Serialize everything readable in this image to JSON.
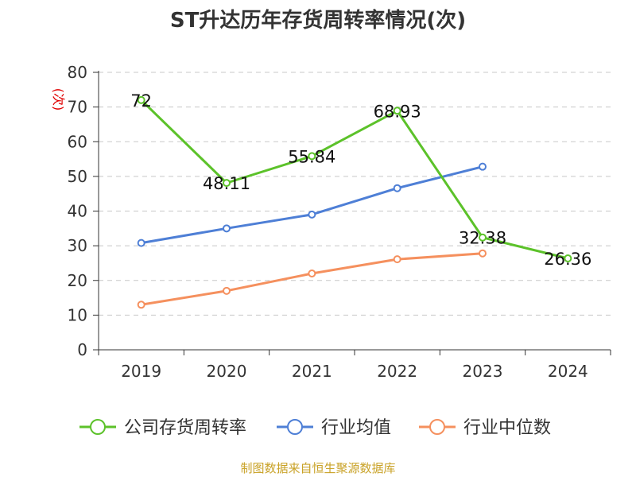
{
  "chart_data": {
    "type": "line",
    "title": "ST升达历年存货周转率情况(次)",
    "ylabel": "(次)",
    "categories": [
      "2019",
      "2020",
      "2021",
      "2022",
      "2023",
      "2024"
    ],
    "y_ticks": [
      0,
      10,
      20,
      30,
      40,
      50,
      60,
      70,
      80
    ],
    "ylim": [
      0,
      80
    ],
    "grid": true,
    "legend_position": "bottom",
    "series": [
      {
        "name": "公司存货周转率",
        "color": "#5cc22a",
        "values": [
          72,
          48.11,
          55.84,
          68.93,
          32.38,
          26.36
        ],
        "labels": [
          "72",
          "48.11",
          "55.84",
          "68.93",
          "32.38",
          "26.36"
        ]
      },
      {
        "name": "行业均值",
        "color": "#4e7fd6",
        "values": [
          30.8,
          35,
          39,
          46.6,
          52.8,
          null
        ]
      },
      {
        "name": "行业中位数",
        "color": "#f5905e",
        "values": [
          13,
          17,
          22,
          26.1,
          27.8,
          null
        ]
      }
    ],
    "source": "制图数据来自恒生聚源数据库"
  }
}
